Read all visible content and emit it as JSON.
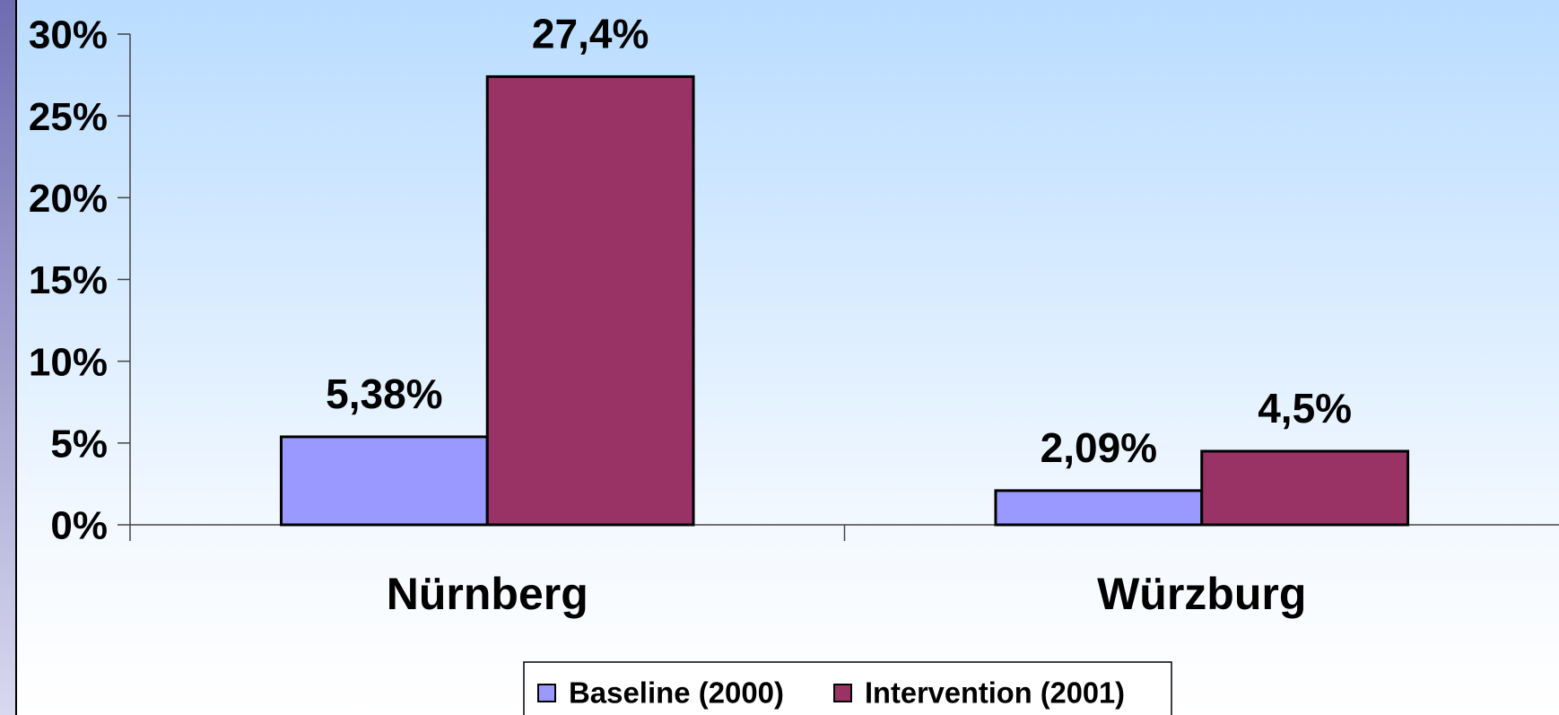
{
  "chart_data": {
    "type": "bar",
    "categories": [
      "Nürnberg",
      "Würzburg"
    ],
    "series": [
      {
        "name": "Baseline (2000)",
        "color": "#9999ff",
        "values": [
          5.38,
          2.09
        ],
        "value_labels": [
          "5,38%",
          "2,09%"
        ]
      },
      {
        "name": "Intervention (2001)",
        "color": "#993366",
        "values": [
          27.4,
          4.5
        ],
        "value_labels": [
          "27,4%",
          "4,5%"
        ]
      }
    ],
    "ylim": [
      0,
      30
    ],
    "yticks": [
      {
        "value": 0,
        "label": "0%"
      },
      {
        "value": 5,
        "label": "5%"
      },
      {
        "value": 10,
        "label": "10%"
      },
      {
        "value": 15,
        "label": "15%"
      },
      {
        "value": 20,
        "label": "20%"
      },
      {
        "value": 25,
        "label": "25%"
      },
      {
        "value": 30,
        "label": "30%"
      }
    ],
    "legend": "bottom"
  }
}
